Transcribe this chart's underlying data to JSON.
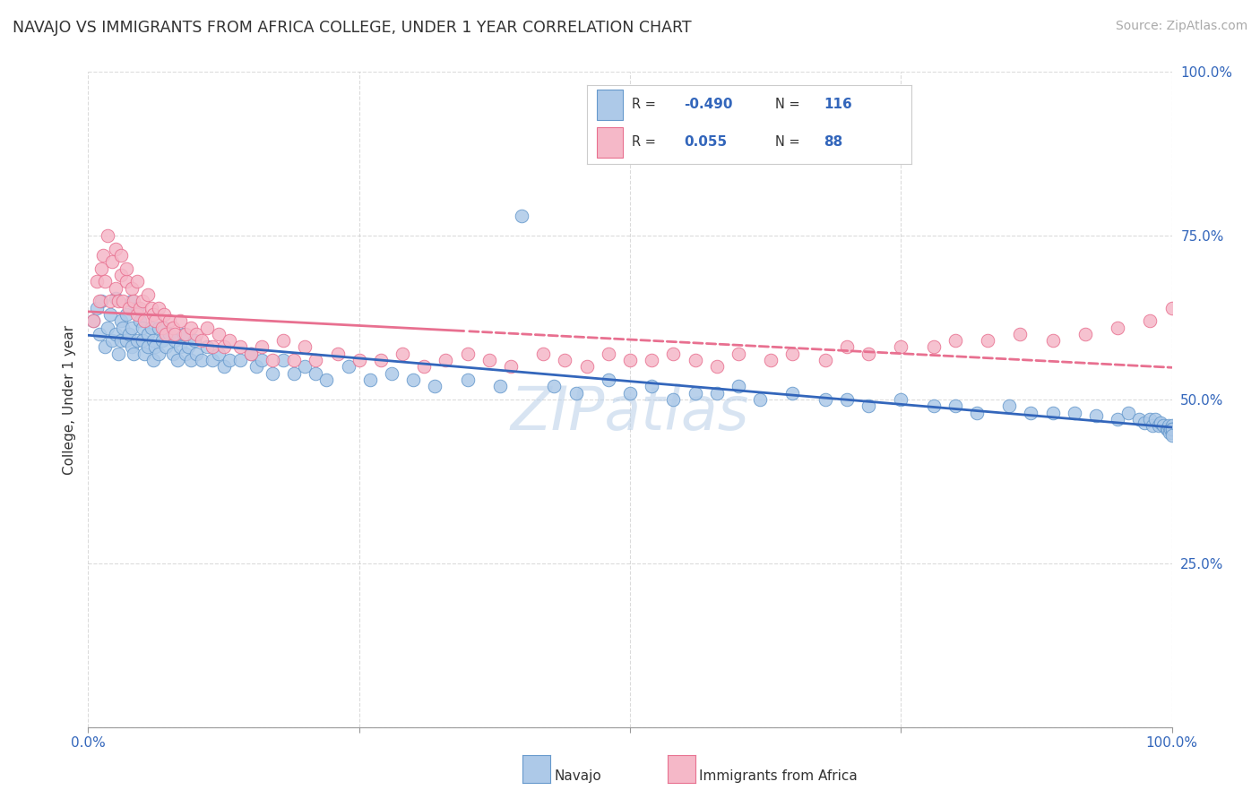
{
  "title": "NAVAJO VS IMMIGRANTS FROM AFRICA COLLEGE, UNDER 1 YEAR CORRELATION CHART",
  "source_text": "Source: ZipAtlas.com",
  "ylabel": "College, Under 1 year",
  "legend_navajo": "Navajo",
  "legend_africa": "Immigrants from Africa",
  "r_navajo": "-0.490",
  "n_navajo": "116",
  "r_africa": "0.055",
  "n_africa": "88",
  "watermark": "ZIPatlas",
  "navajo_color": "#adc9e8",
  "navajo_edge_color": "#6699cc",
  "africa_color": "#f5b8c8",
  "africa_edge_color": "#e87090",
  "navajo_line_color": "#3366bb",
  "africa_line_color": "#e87090",
  "navajo_line_solid_end": 1.0,
  "africa_line_solid_end": 0.35,
  "xlim": [
    0.0,
    1.0
  ],
  "ylim": [
    0.0,
    1.0
  ],
  "navajo_scatter_x": [
    0.005,
    0.008,
    0.01,
    0.012,
    0.015,
    0.018,
    0.02,
    0.022,
    0.025,
    0.025,
    0.028,
    0.03,
    0.03,
    0.032,
    0.035,
    0.035,
    0.038,
    0.04,
    0.04,
    0.04,
    0.042,
    0.045,
    0.045,
    0.048,
    0.05,
    0.05,
    0.052,
    0.055,
    0.055,
    0.058,
    0.06,
    0.06,
    0.062,
    0.065,
    0.065,
    0.068,
    0.07,
    0.072,
    0.075,
    0.078,
    0.08,
    0.082,
    0.085,
    0.088,
    0.09,
    0.092,
    0.095,
    0.098,
    0.1,
    0.105,
    0.11,
    0.115,
    0.12,
    0.125,
    0.13,
    0.14,
    0.15,
    0.155,
    0.16,
    0.17,
    0.18,
    0.19,
    0.2,
    0.21,
    0.22,
    0.24,
    0.26,
    0.28,
    0.3,
    0.32,
    0.35,
    0.38,
    0.4,
    0.43,
    0.45,
    0.48,
    0.5,
    0.52,
    0.54,
    0.56,
    0.58,
    0.6,
    0.62,
    0.65,
    0.68,
    0.7,
    0.72,
    0.75,
    0.78,
    0.8,
    0.82,
    0.85,
    0.87,
    0.89,
    0.91,
    0.93,
    0.95,
    0.96,
    0.97,
    0.975,
    0.98,
    0.982,
    0.985,
    0.988,
    0.99,
    0.992,
    0.995,
    0.996,
    0.997,
    0.998,
    0.999,
    1.0,
    1.0,
    1.0,
    1.0,
    1.0
  ],
  "navajo_scatter_y": [
    0.62,
    0.64,
    0.6,
    0.65,
    0.58,
    0.61,
    0.63,
    0.59,
    0.655,
    0.6,
    0.57,
    0.62,
    0.59,
    0.61,
    0.63,
    0.59,
    0.6,
    0.65,
    0.61,
    0.58,
    0.57,
    0.64,
    0.59,
    0.62,
    0.59,
    0.61,
    0.57,
    0.6,
    0.58,
    0.61,
    0.59,
    0.56,
    0.58,
    0.61,
    0.57,
    0.59,
    0.61,
    0.58,
    0.6,
    0.57,
    0.59,
    0.56,
    0.58,
    0.6,
    0.57,
    0.58,
    0.56,
    0.59,
    0.57,
    0.56,
    0.58,
    0.56,
    0.57,
    0.55,
    0.56,
    0.56,
    0.57,
    0.55,
    0.56,
    0.54,
    0.56,
    0.54,
    0.55,
    0.54,
    0.53,
    0.55,
    0.53,
    0.54,
    0.53,
    0.52,
    0.53,
    0.52,
    0.78,
    0.52,
    0.51,
    0.53,
    0.51,
    0.52,
    0.5,
    0.51,
    0.51,
    0.52,
    0.5,
    0.51,
    0.5,
    0.5,
    0.49,
    0.5,
    0.49,
    0.49,
    0.48,
    0.49,
    0.48,
    0.48,
    0.48,
    0.475,
    0.47,
    0.48,
    0.47,
    0.465,
    0.47,
    0.46,
    0.47,
    0.46,
    0.465,
    0.46,
    0.455,
    0.455,
    0.46,
    0.45,
    0.455,
    0.46,
    0.455,
    0.45,
    0.455,
    0.445
  ],
  "africa_scatter_x": [
    0.005,
    0.008,
    0.01,
    0.012,
    0.014,
    0.015,
    0.018,
    0.02,
    0.022,
    0.025,
    0.025,
    0.028,
    0.03,
    0.03,
    0.032,
    0.035,
    0.035,
    0.038,
    0.04,
    0.042,
    0.045,
    0.045,
    0.048,
    0.05,
    0.052,
    0.055,
    0.058,
    0.06,
    0.062,
    0.065,
    0.068,
    0.07,
    0.072,
    0.075,
    0.078,
    0.08,
    0.085,
    0.09,
    0.095,
    0.1,
    0.105,
    0.11,
    0.115,
    0.12,
    0.125,
    0.13,
    0.14,
    0.15,
    0.16,
    0.17,
    0.18,
    0.19,
    0.2,
    0.21,
    0.23,
    0.25,
    0.27,
    0.29,
    0.31,
    0.33,
    0.35,
    0.37,
    0.39,
    0.42,
    0.44,
    0.46,
    0.48,
    0.5,
    0.52,
    0.54,
    0.56,
    0.58,
    0.6,
    0.63,
    0.65,
    0.68,
    0.7,
    0.72,
    0.75,
    0.78,
    0.8,
    0.83,
    0.86,
    0.89,
    0.92,
    0.95,
    0.98,
    1.0
  ],
  "africa_scatter_y": [
    0.62,
    0.68,
    0.65,
    0.7,
    0.72,
    0.68,
    0.75,
    0.65,
    0.71,
    0.67,
    0.73,
    0.65,
    0.69,
    0.72,
    0.65,
    0.68,
    0.7,
    0.64,
    0.67,
    0.65,
    0.63,
    0.68,
    0.64,
    0.65,
    0.62,
    0.66,
    0.64,
    0.63,
    0.62,
    0.64,
    0.61,
    0.63,
    0.6,
    0.62,
    0.61,
    0.6,
    0.62,
    0.6,
    0.61,
    0.6,
    0.59,
    0.61,
    0.58,
    0.6,
    0.58,
    0.59,
    0.58,
    0.57,
    0.58,
    0.56,
    0.59,
    0.56,
    0.58,
    0.56,
    0.57,
    0.56,
    0.56,
    0.57,
    0.55,
    0.56,
    0.57,
    0.56,
    0.55,
    0.57,
    0.56,
    0.55,
    0.57,
    0.56,
    0.56,
    0.57,
    0.56,
    0.55,
    0.57,
    0.56,
    0.57,
    0.56,
    0.58,
    0.57,
    0.58,
    0.58,
    0.59,
    0.59,
    0.6,
    0.59,
    0.6,
    0.61,
    0.62,
    0.64
  ]
}
